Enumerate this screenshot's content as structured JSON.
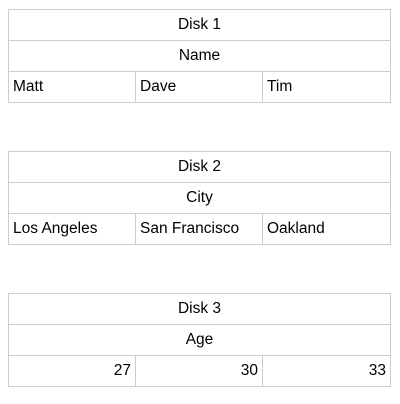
{
  "tables": [
    {
      "title": "Disk 1",
      "field": "Name",
      "values": [
        "Matt",
        "Dave",
        "Tim"
      ],
      "align": "left"
    },
    {
      "title": "Disk 2",
      "field": "City",
      "values": [
        "Los Angeles",
        "San Francisco",
        "Oakland"
      ],
      "align": "left"
    },
    {
      "title": "Disk 3",
      "field": "Age",
      "values": [
        "27",
        "30",
        "33"
      ],
      "align": "right"
    }
  ]
}
